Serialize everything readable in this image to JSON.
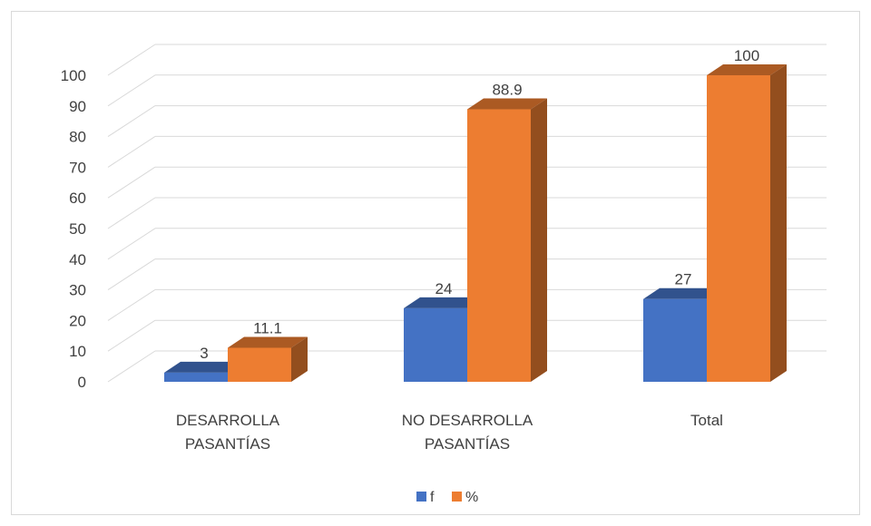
{
  "chart_data": {
    "type": "bar",
    "categories": [
      "DESARROLLA PASANTÍAS",
      "NO DESARROLLA PASANTÍAS",
      "Total"
    ],
    "series": [
      {
        "name": "f",
        "values": [
          3,
          24,
          27
        ],
        "color": "#4472c4"
      },
      {
        "name": "%",
        "values": [
          11.1,
          88.9,
          100
        ],
        "color": "#ed7d31"
      }
    ],
    "y_ticks": [
      0,
      10,
      20,
      30,
      40,
      50,
      60,
      70,
      80,
      90,
      100
    ],
    "ylim": [
      0,
      100
    ],
    "grid": true,
    "legend_position": "bottom",
    "style": "3d-clustered-column",
    "title": "",
    "xlabel": "",
    "ylabel": ""
  }
}
